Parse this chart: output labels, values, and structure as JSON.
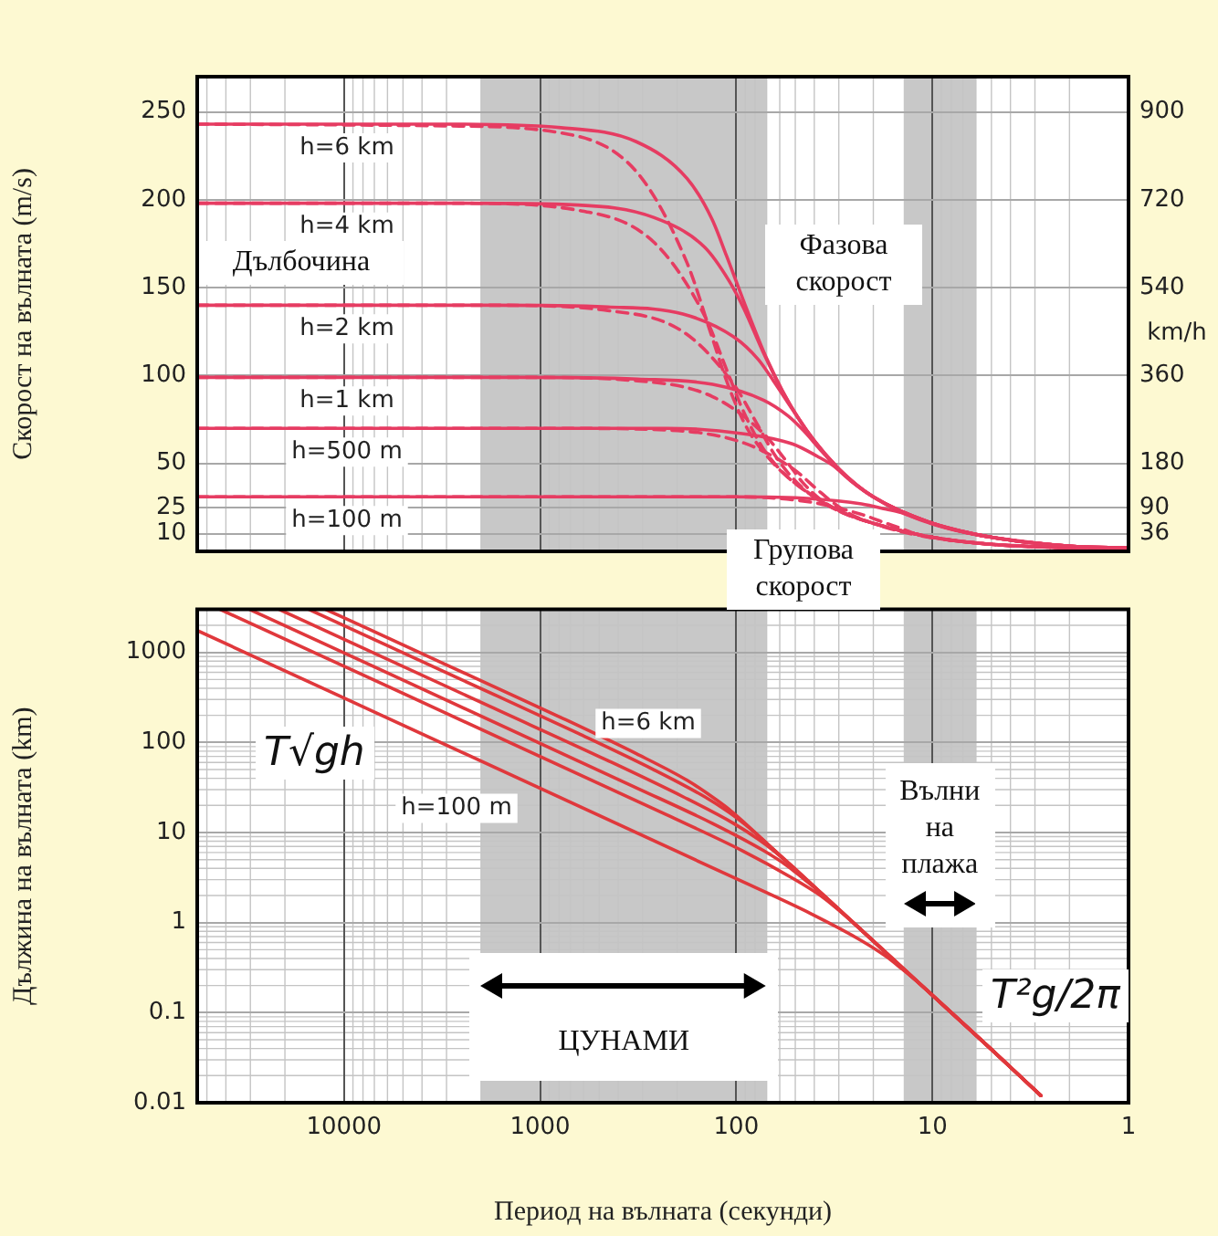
{
  "chart_data": [
    {
      "type": "line",
      "ylabel": "Скорост на вълната (m/s)",
      "y2label": "km/h",
      "log": "x",
      "grid": true,
      "marker": "none",
      "tick_labels": "y",
      "xlim": [
        56000,
        1
      ],
      "xticks": [
        10000,
        1000,
        100,
        10,
        1
      ],
      "ylim": [
        0,
        270
      ],
      "yticks": [
        10,
        25,
        50,
        100,
        150,
        200,
        250
      ],
      "y2lim": [
        0,
        972
      ],
      "y2ticks": [
        36,
        90,
        180,
        360,
        540,
        720,
        900
      ],
      "bands": [
        {
          "axis": "x",
          "from": 2000,
          "to": 70,
          "color": "#c8c8c8"
        },
        {
          "axis": "x",
          "from": 14,
          "to": 6,
          "color": "#c8c8c8"
        }
      ],
      "annotations": [
        "Дълбочина",
        "Фазова скорост",
        "Групова скорост"
      ],
      "series": [
        {
          "name": "h=6 km",
          "color": "#e63c62",
          "line_style": "solid",
          "x": [
            56000,
            3110,
            782,
            323,
            178,
            133,
            112,
            90,
            69.5,
            49.1,
            30,
            20,
            10,
            5,
            2,
            1
          ],
          "values": [
            243,
            243,
            241,
            233,
            212,
            189,
            168,
            140,
            109,
            77,
            47,
            31,
            16,
            8,
            3,
            2
          ]
        },
        {
          "name": "h=4 km",
          "color": "#e63c62",
          "line_style": "solid",
          "x": [
            56000,
            2540,
            639,
            264,
            145,
            109,
            91.4,
            73.4,
            56.8,
            40.1,
            30,
            20,
            10,
            5,
            2,
            1
          ],
          "values": [
            198,
            198,
            197,
            190,
            173,
            154,
            138,
            114,
            89,
            63,
            47,
            31,
            16,
            8,
            3,
            2
          ]
        },
        {
          "name": "h=2 km",
          "color": "#e63c62",
          "line_style": "solid",
          "x": [
            56000,
            1800,
            452,
            187,
            103,
            77,
            64.6,
            51.9,
            40.1,
            28.4,
            20,
            10,
            5,
            2,
            1
          ],
          "values": [
            140,
            140,
            139,
            135,
            122,
            109,
            97,
            81,
            63,
            44,
            31,
            16,
            8,
            3,
            2
          ]
        },
        {
          "name": "h=1 km",
          "color": "#e63c62",
          "line_style": "solid",
          "x": [
            56000,
            1270,
            319,
            132,
            72.6,
            54.4,
            45.7,
            36.7,
            28.4,
            20,
            10,
            5,
            2,
            1
          ],
          "values": [
            99,
            99,
            98,
            95,
            86,
            77,
            69,
            57,
            44,
            31,
            16,
            8,
            3,
            2
          ]
        },
        {
          "name": "h=500 m",
          "color": "#e63c62",
          "line_style": "solid",
          "x": [
            56000,
            898,
            226,
            93.3,
            51.4,
            38.5,
            32.3,
            26,
            20.1,
            14.2,
            10,
            5,
            2,
            1
          ],
          "values": [
            70,
            70,
            70,
            67,
            61,
            54,
            49,
            40,
            31,
            22,
            16,
            8,
            3,
            2
          ]
        },
        {
          "name": "h=100 m",
          "color": "#e63c62",
          "line_style": "solid",
          "x": [
            56000,
            401,
            101,
            41.7,
            23,
            17.2,
            14.4,
            11.6,
            8.97,
            6.34,
            5,
            2,
            1
          ],
          "values": [
            31,
            31,
            31,
            30,
            27,
            24,
            22,
            18,
            14,
            10,
            8,
            3,
            2
          ]
        },
        {
          "color": "#e63c62",
          "line_style": "dashed",
          "x": [
            56000,
            3110,
            782,
            323,
            178,
            133,
            112,
            90,
            69.5,
            49.1,
            30,
            20,
            10,
            5,
            2,
            1
          ],
          "values": [
            243,
            242,
            238,
            216,
            164,
            122,
            97,
            72,
            54,
            38,
            23,
            16,
            8,
            4,
            2,
            1
          ]
        },
        {
          "color": "#e63c62",
          "line_style": "dashed",
          "x": [
            56000,
            2540,
            639,
            264,
            145,
            109,
            91.4,
            73.4,
            56.8,
            40.1,
            30,
            20,
            10,
            5,
            2,
            1
          ],
          "values": [
            198,
            198,
            194,
            176,
            134,
            100,
            79,
            59,
            44,
            31,
            23,
            16,
            8,
            4,
            2,
            1
          ]
        },
        {
          "color": "#e63c62",
          "line_style": "dashed",
          "x": [
            56000,
            1800,
            452,
            187,
            103,
            77,
            64.6,
            51.9,
            40.1,
            28.4,
            20,
            10,
            5,
            2,
            1
          ],
          "values": [
            140,
            140,
            137,
            125,
            95,
            71,
            56,
            42,
            31,
            22,
            16,
            8,
            4,
            2,
            1
          ]
        },
        {
          "color": "#e63c62",
          "line_style": "dashed",
          "x": [
            56000,
            1270,
            319,
            132,
            72.6,
            54.4,
            45.7,
            36.7,
            28.4,
            20,
            10,
            5,
            2,
            1
          ],
          "values": [
            99,
            99,
            97,
            88,
            67,
            50,
            39,
            29,
            22,
            16,
            8,
            4,
            2,
            1
          ]
        },
        {
          "color": "#e63c62",
          "line_style": "dashed",
          "x": [
            56000,
            898,
            226,
            93.3,
            51.4,
            38.5,
            32.3,
            26,
            20.1,
            14.2,
            10,
            5,
            2,
            1
          ],
          "values": [
            70,
            70,
            69,
            62,
            47,
            35,
            28,
            21,
            16,
            11,
            8,
            4,
            2,
            1
          ]
        },
        {
          "color": "#e63c62",
          "line_style": "dashed",
          "x": [
            56000,
            401,
            101,
            41.7,
            23,
            17.2,
            14.4,
            11.6,
            8.97,
            6.34,
            5,
            2,
            1
          ],
          "values": [
            31,
            31,
            31,
            28,
            21,
            16,
            13,
            9,
            7,
            5,
            4,
            2,
            1
          ]
        }
      ]
    },
    {
      "type": "line",
      "xlabel": "Период на вълната (секунди)",
      "ylabel": "Дължина на вълната (km)",
      "log": "xy",
      "grid": true,
      "marker": "none",
      "xlim": [
        56000,
        1
      ],
      "xticks": [
        10000,
        1000,
        100,
        10,
        1
      ],
      "ylim": [
        0.01,
        3000
      ],
      "yticks": [
        0.01,
        0.1,
        1,
        10,
        100,
        1000
      ],
      "bands": [
        {
          "axis": "x",
          "from": 2000,
          "to": 70,
          "color": "#c8c8c8",
          "label": "ЦУНАМИ"
        },
        {
          "axis": "x",
          "from": 14,
          "to": 6,
          "color": "#c8c8c8",
          "label": "Вълни на плажа"
        }
      ],
      "annotations": [
        "T√gh",
        "T²g/2π"
      ],
      "series": [
        {
          "name": "h=6 km",
          "color": "#e0383c",
          "x": [
            12400,
            3110,
            782,
            323,
            178,
            133,
            112,
            90,
            69.5,
            49.1,
            20,
            10,
            5,
            2.8
          ],
          "values": [
            3000,
            754,
            189,
            75,
            38,
            25,
            19,
            12.6,
            7.5,
            3.8,
            0.62,
            0.156,
            0.039,
            0.012
          ]
        },
        {
          "color": "#e0383c",
          "x": [
            15100,
            2540,
            639,
            264,
            145,
            109,
            91.4,
            73.4,
            56.8,
            40.1,
            20,
            10,
            5,
            2.8
          ],
          "values": [
            3000,
            503,
            126,
            50,
            25,
            16.8,
            12.6,
            8.4,
            5,
            2.5,
            0.62,
            0.156,
            0.039,
            0.012
          ]
        },
        {
          "color": "#e0383c",
          "x": [
            21400,
            1800,
            452,
            187,
            103,
            77,
            64.6,
            51.9,
            40.1,
            28.4,
            10,
            5,
            2.8
          ],
          "values": [
            3000,
            251,
            63,
            25,
            12.6,
            8.4,
            6.3,
            4.2,
            2.5,
            1.26,
            0.156,
            0.039,
            0.012
          ]
        },
        {
          "color": "#e0383c",
          "x": [
            30300,
            319,
            132,
            72.6,
            54.4,
            45.7,
            36.7,
            28.4,
            20,
            10,
            5,
            2.8
          ],
          "values": [
            3000,
            31,
            12.6,
            6.3,
            4.2,
            3.1,
            2.1,
            1.26,
            0.63,
            0.156,
            0.039,
            0.012
          ]
        },
        {
          "color": "#e0383c",
          "x": [
            42800,
            226,
            93.3,
            51.4,
            38.5,
            32.3,
            26,
            20.1,
            14.2,
            10,
            5,
            2.8
          ],
          "values": [
            3000,
            15.7,
            6.3,
            3.1,
            2.1,
            1.57,
            1.05,
            0.63,
            0.31,
            0.156,
            0.039,
            0.012
          ]
        },
        {
          "name": "h=100 m",
          "color": "#e0383c",
          "x": [
            56000,
            101,
            41.7,
            23,
            17.2,
            14.4,
            11.6,
            8.97,
            6.34,
            5,
            2.8
          ],
          "values": [
            1750,
            3.1,
            1.26,
            0.63,
            0.42,
            0.31,
            0.21,
            0.126,
            0.063,
            0.039,
            0.012
          ]
        }
      ]
    }
  ]
}
